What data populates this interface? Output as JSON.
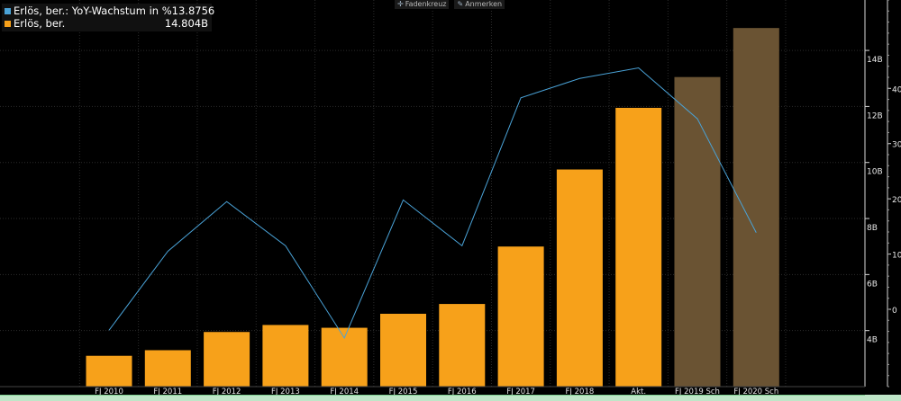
{
  "toolbar": {
    "crosshair_label": "Fadenkreuz",
    "crosshair_icon": "crosshair-icon",
    "annotate_label": "Anmerken",
    "annotate_icon": "pencil-icon"
  },
  "legend": [
    {
      "name": "Erlös, ber.: YoY-Wachstum in %",
      "value": "13.8756",
      "color": "#4aa3d8"
    },
    {
      "name": "Erlös, ber.",
      "value": "14.804B",
      "color": "#f7a11a"
    }
  ],
  "chart_data": {
    "type": "bar",
    "categories": [
      "FJ 2010",
      "FJ 2011",
      "FJ 2012",
      "FJ 2013",
      "FJ 2014",
      "FJ 2015",
      "FJ 2016",
      "FJ 2017",
      "FJ 2018",
      "Akt.",
      "FJ 2019 Sch",
      "FJ 2020 Sch"
    ],
    "series": [
      {
        "name": "Erlös, ber.",
        "type": "bar",
        "axis": "right-inner",
        "values": [
          3.1,
          3.3,
          3.95,
          4.2,
          4.1,
          4.6,
          4.95,
          7.0,
          9.75,
          11.95,
          13.05,
          14.8
        ],
        "estimate_from_index": 10,
        "color": "#f7a11a",
        "estimate_color": "#6a5333"
      },
      {
        "name": "Erlös, ber.: YoY-Wachstum in %",
        "type": "line",
        "axis": "right-outer",
        "values": [
          -3.8,
          10.5,
          19.5,
          11.5,
          -5.2,
          19.8,
          11.5,
          38.3,
          41.8,
          43.7,
          34.5,
          13.8756
        ],
        "color": "#4aa3d8"
      }
    ],
    "y_inner": {
      "ticks": [
        "4B",
        "6B",
        "8B",
        "10B",
        "12B",
        "14B"
      ],
      "values": [
        4,
        6,
        8,
        10,
        12,
        14
      ],
      "range": [
        2.0,
        15.8
      ]
    },
    "y_outer": {
      "ticks": [
        "0",
        "10",
        "20",
        "30",
        "40"
      ],
      "values": [
        0,
        10,
        20,
        30,
        40
      ],
      "range": [
        -14,
        56
      ]
    }
  }
}
